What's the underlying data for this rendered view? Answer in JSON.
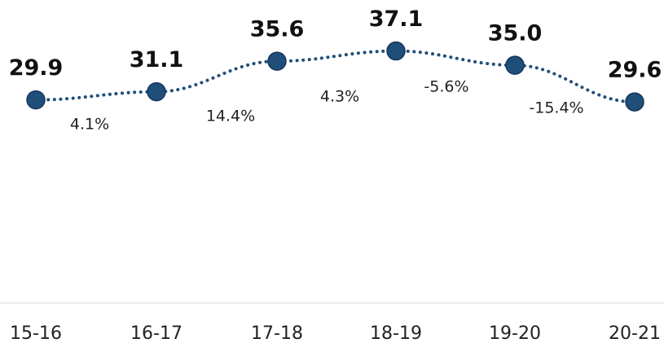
{
  "chart_data": {
    "type": "line",
    "categories": [
      "15-16",
      "16-17",
      "17-18",
      "18-19",
      "19-20",
      "20-21"
    ],
    "values": [
      29.9,
      31.1,
      35.6,
      37.1,
      35,
      29.6
    ],
    "value_labels": [
      "29.9",
      "31.1",
      "35.6",
      "37.1",
      "35.0",
      "29.6"
    ],
    "annotations": [
      "4.1%",
      "14.4%",
      "4.3%",
      "-5.6%",
      "-15.4%"
    ],
    "color": "#1f4e79",
    "ylim": [
      0,
      44.6
    ]
  }
}
